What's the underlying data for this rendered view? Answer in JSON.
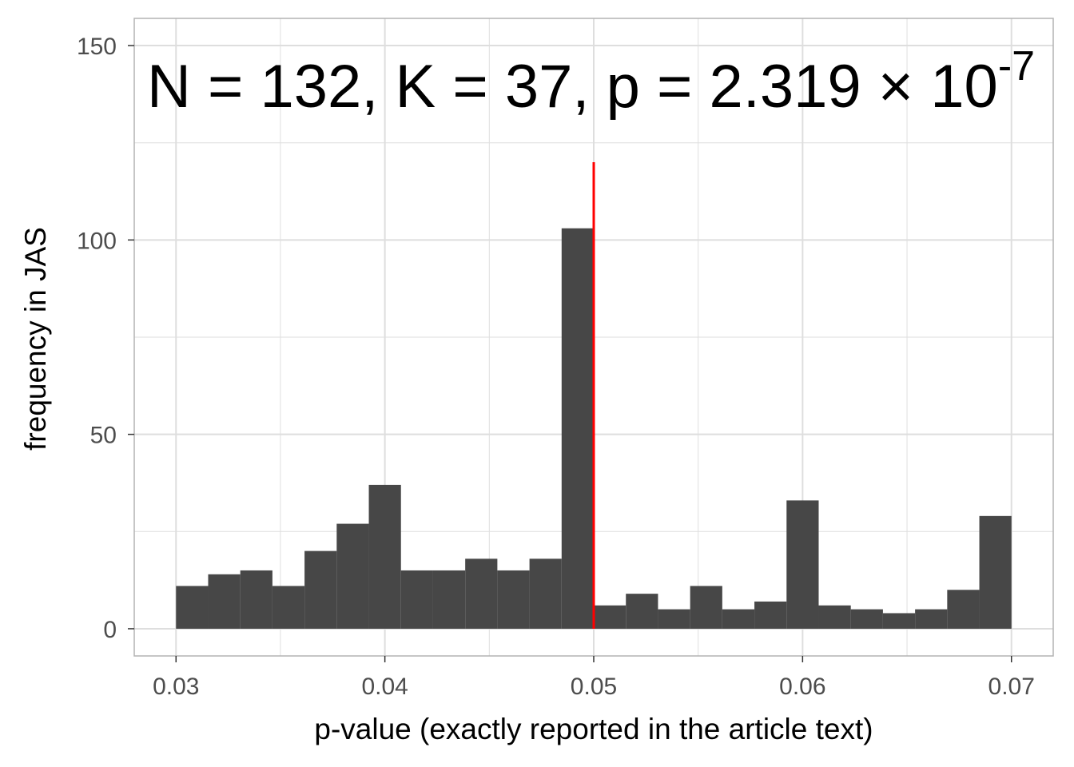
{
  "chart_data": {
    "type": "bar",
    "subtype": "histogram",
    "xlabel": "p-value (exactly reported in the article text)",
    "ylabel": "frequency in JAS",
    "xlim": [
      0.028,
      0.072
    ],
    "ylim": [
      -7,
      157
    ],
    "x_ticks": [
      0.03,
      0.04,
      0.05,
      0.06,
      0.07
    ],
    "x_tick_labels": [
      "0.03",
      "0.04",
      "0.05",
      "0.06",
      "0.07"
    ],
    "y_ticks": [
      0,
      50,
      100,
      150
    ],
    "y_tick_labels": [
      "0",
      "50",
      "100",
      "150"
    ],
    "bin_start": 0.03,
    "bin_width": 0.0015385,
    "values": [
      11,
      14,
      15,
      11,
      20,
      27,
      37,
      15,
      15,
      18,
      15,
      18,
      103,
      6,
      9,
      5,
      11,
      5,
      7,
      33,
      6,
      5,
      4,
      5,
      10,
      29
    ],
    "bar_color": "#474747",
    "threshold_line": {
      "x": 0.05,
      "y_range": [
        0,
        120
      ],
      "color": "#ff0000"
    },
    "grid": true,
    "panel_border_color": "#b3b3b3",
    "grid_color": "#dedede",
    "annotation": {
      "text": "N = 132, K = 37, p = 2.319 × 10",
      "superscript": "-7"
    }
  }
}
